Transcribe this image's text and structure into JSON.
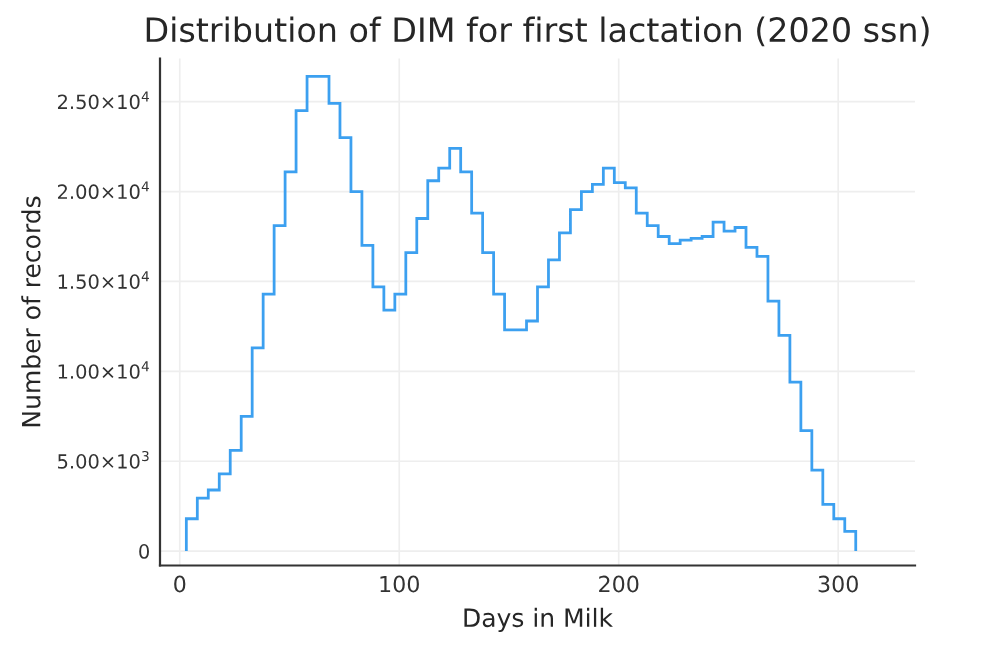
{
  "chart_data": {
    "type": "histogram",
    "title": "Distribution of DIM for first lactation (2020 ssn)",
    "xlabel": "Days in Milk",
    "ylabel": "Number of records",
    "color": "#3ca0f0",
    "bins": [
      3,
      8,
      13,
      18,
      23,
      28,
      33,
      38,
      43,
      48,
      53,
      58,
      63,
      68,
      73,
      78,
      83,
      88,
      93,
      98,
      103,
      108,
      113,
      118,
      123,
      128,
      133,
      138,
      143,
      148,
      153,
      158,
      163,
      168,
      173,
      178,
      183,
      188,
      193,
      198,
      203,
      208,
      213,
      218,
      223,
      228,
      233,
      238,
      243,
      248,
      253,
      258,
      263,
      268,
      273,
      278,
      283,
      288,
      293,
      298,
      303,
      308
    ],
    "values": [
      1800,
      2950,
      3400,
      4300,
      5600,
      7500,
      11300,
      14300,
      18100,
      21100,
      24500,
      26400,
      26400,
      24900,
      23000,
      20000,
      17000,
      14700,
      13400,
      14300,
      16600,
      18500,
      20600,
      21300,
      22400,
      21100,
      18800,
      16600,
      14300,
      12300,
      12300,
      12800,
      14700,
      16200,
      17700,
      19000,
      20000,
      20400,
      21300,
      20500,
      20200,
      18800,
      18100,
      17500,
      17100,
      17300,
      17400,
      17500,
      18300,
      17800,
      18000,
      16900,
      16400,
      13900,
      12000,
      9400,
      6700,
      4500,
      2600,
      1800,
      1100
    ],
    "xlim": [
      -9,
      335
    ],
    "ylim": [
      -800,
      27400
    ],
    "xticks": [
      0,
      100,
      200,
      300
    ],
    "yticks": [
      0,
      {
        "value": 5000,
        "label": "5.00×10$^{3}$"
      },
      {
        "value": 10000,
        "label": "1.00×10$^{4}$"
      },
      {
        "value": 15000,
        "label": "1.50×10$^{4}$"
      },
      {
        "value": 20000,
        "label": "2.00×10$^{4}$"
      },
      {
        "value": 25000,
        "label": "2.50×10$^{4}$"
      }
    ],
    "grid": true,
    "legend": false
  }
}
